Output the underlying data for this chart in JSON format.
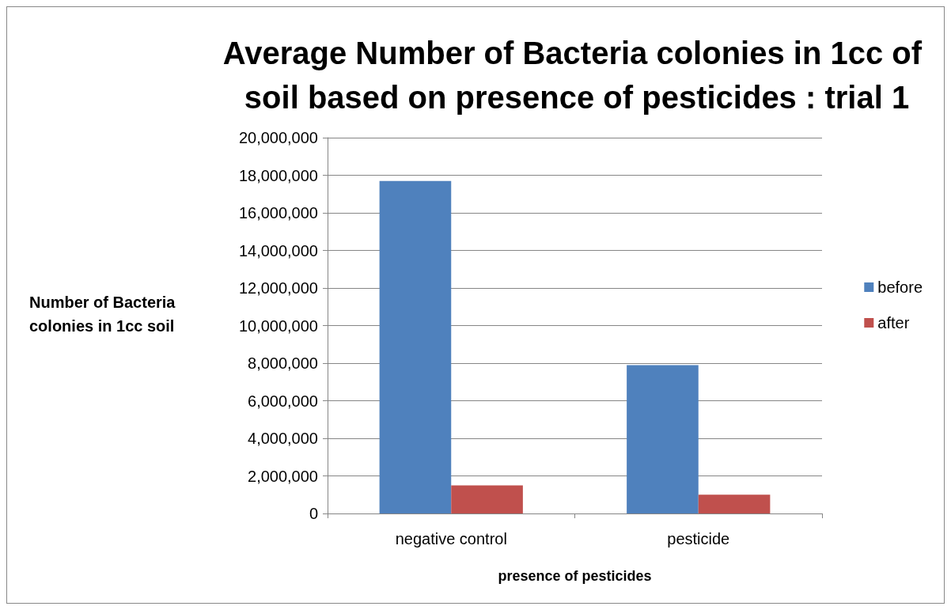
{
  "chart_data": {
    "type": "bar",
    "title": "Average Number of Bacteria colonies in 1cc of soil based on presence of pesticides : trial 1",
    "xlabel": "presence of pesticides",
    "ylabel": "Number of Bacteria colonies in 1cc soil",
    "categories": [
      "negative control",
      "pesticide"
    ],
    "series": [
      {
        "name": "before",
        "color": "#4f81bd",
        "values": [
          17700000,
          7900000
        ]
      },
      {
        "name": "after",
        "color": "#c0504d",
        "values": [
          1500000,
          1000000
        ]
      }
    ],
    "ylim": [
      0,
      20000000
    ],
    "yticks": [
      0,
      {
        "value": 2000000,
        "label": "2,000,000"
      },
      {
        "value": 4000000,
        "label": "4,000,000"
      },
      {
        "value": 6000000,
        "label": "6,000,000"
      },
      {
        "value": 8000000,
        "label": "8,000,000"
      },
      {
        "value": 10000000,
        "label": "10,000,000"
      },
      {
        "value": 12000000,
        "label": "12,000,000"
      },
      {
        "value": 14000000,
        "label": "14,000,000"
      },
      {
        "value": 16000000,
        "label": "16,000,000"
      },
      {
        "value": 18000000,
        "label": "18,000,000"
      },
      {
        "value": 20000000,
        "label": "20,000,000"
      }
    ],
    "grid": "y",
    "legend": "right"
  }
}
